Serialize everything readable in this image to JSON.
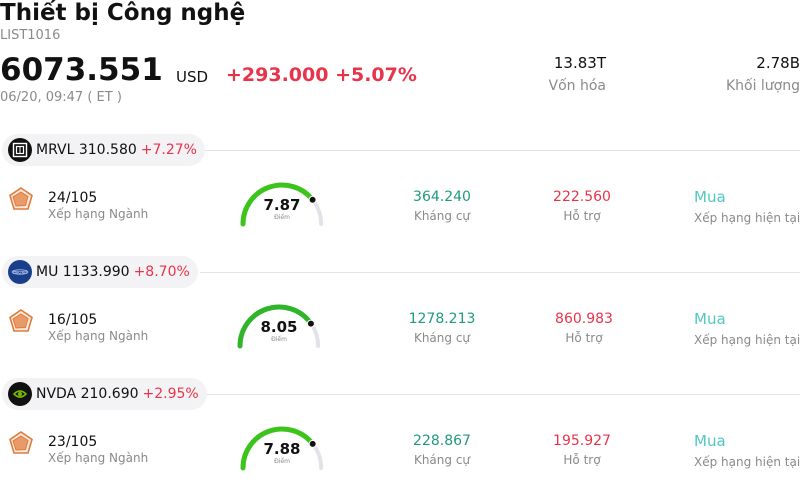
{
  "header": {
    "title": "Thiết bị Công nghệ",
    "code": "LIST1016",
    "price": "6073.551",
    "currency": "USD",
    "change": "+293.000 +5.07%",
    "time": "06/20, 09:47 ( ET )"
  },
  "stats": {
    "market_cap": {
      "value": "13.83T",
      "label": "Vốn hóa"
    },
    "volume": {
      "value": "2.78B",
      "label": "Khối lượng"
    }
  },
  "colors": {
    "up": "#e8344a",
    "resistance": "#1f9a7f",
    "rating": "#4fc9c0",
    "gauge": "#3cc41c"
  },
  "stocks": [
    {
      "ticker_price": "MRVL 310.580",
      "change": "+7.27%",
      "logo": "marvell-logo",
      "rank": "24/105",
      "rank_label": "Xếp hạng Ngành",
      "score": "7.87",
      "score_value": 7.87,
      "score_label": "Điểm",
      "resistance": "364.240",
      "resistance_label": "Kháng cự",
      "support": "222.560",
      "support_label": "Hỗ trợ",
      "rating": "Mua",
      "rating_label": "Xếp hạng hiện tại"
    },
    {
      "ticker_price": "MU 1133.990",
      "change": "+8.70%",
      "logo": "micron-logo",
      "rank": "16/105",
      "rank_label": "Xếp hạng Ngành",
      "score": "8.05",
      "score_value": 8.05,
      "score_label": "Điểm",
      "resistance": "1278.213",
      "resistance_label": "Kháng cự",
      "support": "860.983",
      "support_label": "Hỗ trợ",
      "rating": "Mua",
      "rating_label": "Xếp hạng hiện tại"
    },
    {
      "ticker_price": "NVDA 210.690",
      "change": "+2.95%",
      "logo": "nvidia-logo",
      "rank": "23/105",
      "rank_label": "Xếp hạng Ngành",
      "score": "7.88",
      "score_value": 7.88,
      "score_label": "Điểm",
      "resistance": "228.867",
      "resistance_label": "Kháng cự",
      "support": "195.927",
      "support_label": "Hỗ trợ",
      "rating": "Mua",
      "rating_label": "Xếp hạng hiện tại"
    }
  ]
}
